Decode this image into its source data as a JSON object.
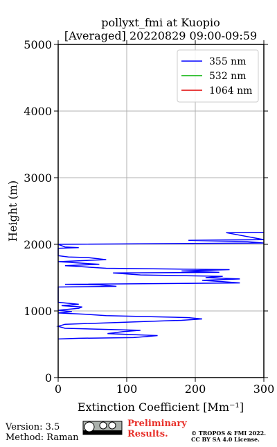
{
  "chart_data": {
    "type": "profile",
    "title": "pollyxt_fmi at Kuopio",
    "subtitle": "[Averaged] 20220829 09:00-09:59",
    "xlabel": "Extinction Coefficient [Mm⁻¹]",
    "ylabel": "Height (m)",
    "y": [
      580,
      590,
      600,
      630,
      660,
      690,
      710,
      740,
      770,
      800,
      860,
      880,
      900,
      930,
      950,
      970,
      990,
      1010,
      1040,
      1060,
      1080,
      1100,
      1130,
      1360,
      1370,
      1390,
      1400,
      1420,
      1440,
      1460,
      1480,
      1500,
      1520,
      1540,
      1570,
      1580,
      1600,
      1620,
      1640,
      1680,
      1700,
      1740,
      1770,
      1800,
      1810,
      1830,
      1940,
      1950,
      1960,
      2000,
      2020,
      2040,
      2060,
      2070,
      2175,
      2180
    ],
    "series": [
      {
        "name": "355 nm",
        "color": "#0000ff",
        "values": [
          0,
          30,
          110,
          145,
          72,
          95,
          120,
          10,
          0,
          10,
          180,
          210,
          190,
          70,
          40,
          0,
          20,
          0,
          30,
          35,
          5,
          30,
          0,
          0,
          85,
          60,
          10,
          265,
          240,
          210,
          265,
          215,
          240,
          120,
          80,
          235,
          180,
          250,
          70,
          10,
          60,
          0,
          70,
          45,
          15,
          0,
          0,
          30,
          10,
          0,
          300,
          275,
          190,
          300,
          245,
          300
        ]
      },
      {
        "name": "532 nm",
        "color": "#00b000",
        "values": [
          null,
          null,
          null,
          null,
          null,
          null,
          null,
          null,
          null,
          null,
          null,
          null,
          null,
          null,
          null,
          null,
          null,
          null,
          null,
          null,
          null,
          null,
          null,
          null,
          null,
          null,
          null,
          null,
          null,
          null,
          null,
          null,
          null,
          null,
          null,
          null,
          null,
          null,
          null,
          null,
          null,
          null,
          null,
          null,
          null,
          null,
          null,
          null,
          null,
          null,
          null,
          null,
          null,
          null,
          null,
          null
        ]
      },
      {
        "name": "1064 nm",
        "color": "#e00000",
        "values": [
          null,
          null,
          null,
          null,
          null,
          null,
          null,
          null,
          null,
          null,
          null,
          null,
          null,
          null,
          null,
          null,
          null,
          null,
          null,
          null,
          null,
          null,
          null,
          null,
          null,
          null,
          null,
          null,
          null,
          null,
          null,
          null,
          null,
          null,
          null,
          null,
          null,
          null,
          null,
          null,
          null,
          null,
          null,
          null,
          null,
          null,
          null,
          null,
          null,
          null,
          null,
          null,
          null,
          null,
          null,
          null
        ]
      }
    ],
    "xlim": [
      0,
      300
    ],
    "xticks": [
      0,
      100,
      200,
      300
    ],
    "ylim": [
      0,
      5000
    ],
    "yticks": [
      0,
      1000,
      2000,
      3000,
      4000,
      5000
    ],
    "grid": true,
    "legend": "upper right"
  },
  "footer": {
    "version": "Version: 3.5",
    "method": "Method: Raman",
    "notice": "Preliminary Results.",
    "copyright": "© TROPOS & FMI 2022.",
    "license": "CC BY SA 4.0 License."
  }
}
